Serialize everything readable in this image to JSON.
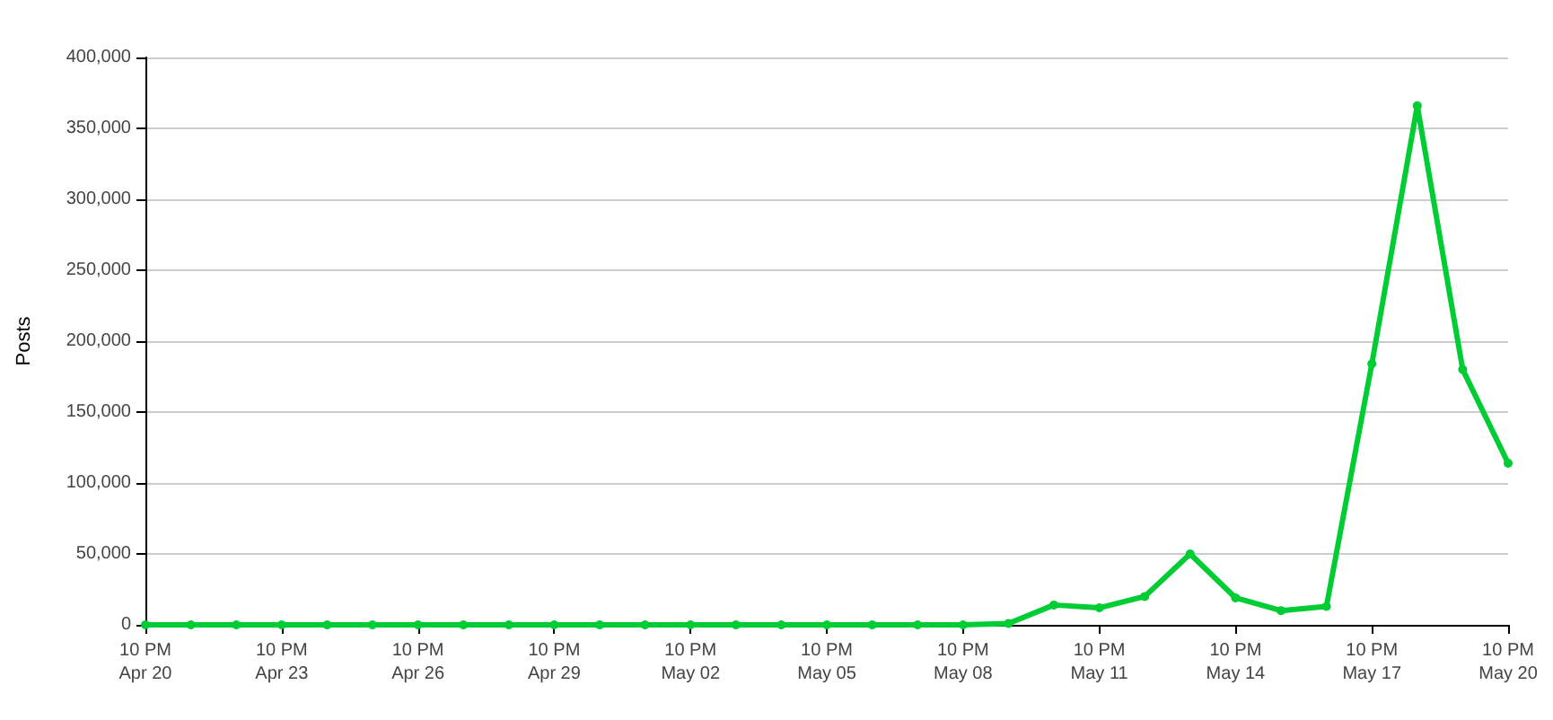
{
  "chart_data": {
    "type": "line",
    "ylabel": "Posts",
    "x": [
      "--04-20",
      "--04-21",
      "--04-22",
      "--04-23",
      "--04-24",
      "--04-25",
      "--04-26",
      "--04-27",
      "--04-28",
      "--04-29",
      "--04-30",
      "--05-01",
      "--05-02",
      "--05-03",
      "--05-04",
      "--05-05",
      "--05-06",
      "--05-07",
      "--05-08",
      "--05-09",
      "--05-10",
      "--05-11",
      "--05-12",
      "--05-13",
      "--05-14",
      "--05-15",
      "--05-16",
      "--05-17",
      "--05-18",
      "--05-19",
      "--05-20"
    ],
    "series": [
      {
        "color": "#00cc33",
        "values": [
          0,
          0,
          0,
          0,
          0,
          0,
          0,
          0,
          0,
          0,
          0,
          0,
          0,
          0,
          0,
          0,
          0,
          0,
          0,
          1000,
          14000,
          12000,
          20000,
          50000,
          19000,
          10000,
          13000,
          184000,
          366000,
          180000,
          114000
        ]
      }
    ],
    "xlim": [
      "--04-20",
      "--05-20"
    ],
    "xticks": [
      {
        "value": "--04-20",
        "label": "10 PM\nApr 20"
      },
      {
        "value": "--04-23",
        "label": "10 PM\nApr 23"
      },
      {
        "value": "--04-26",
        "label": "10 PM\nApr 26"
      },
      {
        "value": "--04-29",
        "label": "10 PM\nApr 29"
      },
      {
        "value": "--05-02",
        "label": "10 PM\nMay 02"
      },
      {
        "value": "--05-05",
        "label": "10 PM\nMay 05"
      },
      {
        "value": "--05-08",
        "label": "10 PM\nMay 08"
      },
      {
        "value": "--05-11",
        "label": "10 PM\nMay 11"
      },
      {
        "value": "--05-14",
        "label": "10 PM\nMay 14"
      },
      {
        "value": "--05-17",
        "label": "10 PM\nMay 17"
      },
      {
        "value": "--05-20",
        "label": "10 PM\nMay 20"
      }
    ],
    "ylim": [
      0,
      400000
    ],
    "yticks": [
      {
        "value": 0,
        "label": "0"
      },
      {
        "value": 50000,
        "label": "50,000"
      },
      {
        "value": 100000,
        "label": "100,000"
      },
      {
        "value": 150000,
        "label": "150,000"
      },
      {
        "value": 200000,
        "label": "200,000"
      },
      {
        "value": 250000,
        "label": "250,000"
      },
      {
        "value": 300000,
        "label": "300,000"
      },
      {
        "value": 350000,
        "label": "350,000"
      },
      {
        "value": 400000,
        "label": "400,000"
      }
    ],
    "grid": "y",
    "marker": "circle",
    "line_style": "solid"
  }
}
